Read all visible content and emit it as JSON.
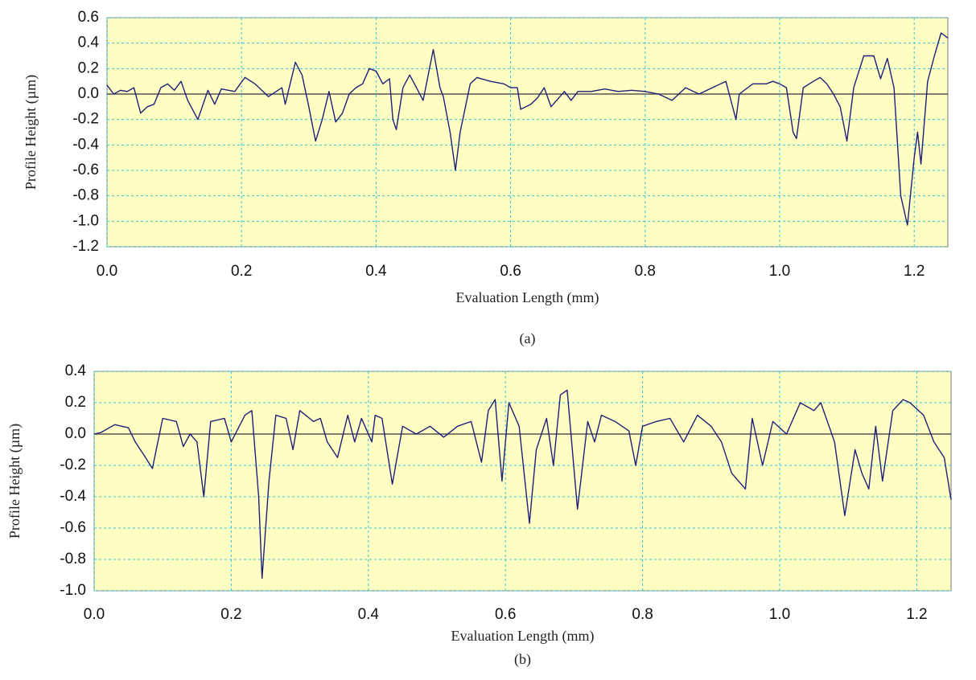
{
  "chart_data": [
    {
      "type": "line",
      "caption": "(a)",
      "xlabel": "Evaluation Length (mm)",
      "ylabel": "Profile Height (µm)",
      "color": "#1f1f7a",
      "grid": true,
      "xlim": [
        0,
        1.25
      ],
      "xticks": [
        {
          "value": 0,
          "label": "0.0"
        },
        0.2,
        0.4,
        0.6,
        0.8,
        {
          "value": 1,
          "label": "1.0"
        },
        1.2
      ],
      "ylim": [
        -1.2,
        0.6
      ],
      "yticks": [
        0.6,
        0.4,
        0.2,
        {
          "value": 0,
          "label": "0.0"
        },
        -0.2,
        -0.4,
        -0.6,
        -0.8,
        {
          "value": -1,
          "label": "-1.0"
        },
        -1.2
      ],
      "x": [
        0,
        0.01,
        0.02,
        0.03,
        0.04,
        0.05,
        0.06,
        0.07,
        0.08,
        0.09,
        0.1,
        0.11,
        0.12,
        0.135,
        0.15,
        0.16,
        0.17,
        0.19,
        0.205,
        0.22,
        0.24,
        0.26,
        0.265,
        0.28,
        0.29,
        0.3,
        0.31,
        0.32,
        0.33,
        0.34,
        0.35,
        0.36,
        0.37,
        0.38,
        0.39,
        0.4,
        0.41,
        0.42,
        0.425,
        0.43,
        0.44,
        0.45,
        0.46,
        0.47,
        0.485,
        0.495,
        0.5,
        0.51,
        0.518,
        0.525,
        0.54,
        0.55,
        0.57,
        0.59,
        0.6,
        0.61,
        0.615,
        0.63,
        0.64,
        0.65,
        0.66,
        0.68,
        0.69,
        0.7,
        0.72,
        0.74,
        0.76,
        0.78,
        0.8,
        0.82,
        0.84,
        0.86,
        0.88,
        0.9,
        0.92,
        0.935,
        0.94,
        0.96,
        0.98,
        0.99,
        1.0,
        1.01,
        1.02,
        1.025,
        1.035,
        1.05,
        1.06,
        1.07,
        1.08,
        1.09,
        1.1,
        1.11,
        1.125,
        1.14,
        1.15,
        1.16,
        1.17,
        1.18,
        1.19,
        1.2,
        1.205,
        1.21,
        1.22,
        1.23,
        1.24,
        1.25
      ],
      "values": [
        0.07,
        0.0,
        0.03,
        0.02,
        0.05,
        -0.15,
        -0.1,
        -0.08,
        0.05,
        0.08,
        0.03,
        0.1,
        -0.05,
        -0.2,
        0.03,
        -0.08,
        0.04,
        0.02,
        0.13,
        0.08,
        -0.02,
        0.05,
        -0.08,
        0.25,
        0.15,
        -0.1,
        -0.37,
        -0.2,
        0.02,
        -0.22,
        -0.15,
        0.0,
        0.05,
        0.08,
        0.2,
        0.18,
        0.08,
        0.12,
        -0.2,
        -0.28,
        0.05,
        0.15,
        0.05,
        -0.05,
        0.35,
        0.05,
        -0.02,
        -0.3,
        -0.6,
        -0.3,
        0.08,
        0.13,
        0.1,
        0.08,
        0.05,
        0.05,
        -0.12,
        -0.08,
        -0.03,
        0.05,
        -0.1,
        0.02,
        -0.05,
        0.02,
        0.02,
        0.04,
        0.02,
        0.03,
        0.02,
        0.0,
        -0.05,
        0.05,
        0.0,
        0.05,
        0.1,
        -0.2,
        0.0,
        0.08,
        0.08,
        0.1,
        0.08,
        0.05,
        -0.3,
        -0.35,
        0.05,
        0.1,
        0.13,
        0.08,
        0.0,
        -0.1,
        -0.37,
        0.05,
        0.3,
        0.3,
        0.12,
        0.28,
        0.05,
        -0.8,
        -1.03,
        -0.5,
        -0.3,
        -0.55,
        0.1,
        0.3,
        0.48,
        0.44
      ]
    },
    {
      "type": "line",
      "caption": "(b)",
      "xlabel": "Evaluation Length (mm)",
      "ylabel": "Profile Height (µm)",
      "color": "#1f1f7a",
      "grid": true,
      "xlim": [
        0,
        1.25
      ],
      "xticks": [
        {
          "value": 0,
          "label": "0.0"
        },
        0.2,
        0.4,
        0.6,
        0.8,
        {
          "value": 1,
          "label": "1.0"
        },
        1.2
      ],
      "ylim": [
        -1,
        0.4
      ],
      "yticks": [
        0.4,
        0.2,
        {
          "value": 0,
          "label": "0.0"
        },
        -0.2,
        -0.4,
        -0.6,
        -0.8,
        {
          "value": -1,
          "label": "-1.0"
        }
      ],
      "x": [
        0,
        0.01,
        0.03,
        0.05,
        0.06,
        0.075,
        0.085,
        0.1,
        0.12,
        0.13,
        0.14,
        0.15,
        0.16,
        0.17,
        0.19,
        0.2,
        0.22,
        0.23,
        0.24,
        0.245,
        0.255,
        0.265,
        0.28,
        0.29,
        0.3,
        0.32,
        0.33,
        0.34,
        0.355,
        0.37,
        0.38,
        0.39,
        0.405,
        0.41,
        0.42,
        0.435,
        0.45,
        0.47,
        0.49,
        0.51,
        0.53,
        0.55,
        0.565,
        0.575,
        0.585,
        0.595,
        0.605,
        0.62,
        0.635,
        0.645,
        0.66,
        0.67,
        0.68,
        0.69,
        0.705,
        0.72,
        0.73,
        0.74,
        0.76,
        0.78,
        0.79,
        0.8,
        0.82,
        0.84,
        0.86,
        0.88,
        0.9,
        0.915,
        0.93,
        0.95,
        0.96,
        0.975,
        0.99,
        1.01,
        1.03,
        1.05,
        1.06,
        1.08,
        1.095,
        1.11,
        1.12,
        1.13,
        1.14,
        1.15,
        1.165,
        1.18,
        1.19,
        1.21,
        1.225,
        1.24,
        1.25
      ],
      "values": [
        0.0,
        0.01,
        0.06,
        0.04,
        -0.05,
        -0.15,
        -0.22,
        0.1,
        0.08,
        -0.08,
        0.0,
        -0.05,
        -0.4,
        0.08,
        0.1,
        -0.05,
        0.12,
        0.15,
        -0.4,
        -0.92,
        -0.3,
        0.12,
        0.1,
        -0.1,
        0.15,
        0.08,
        0.1,
        -0.05,
        -0.15,
        0.12,
        -0.05,
        0.1,
        -0.05,
        0.12,
        0.1,
        -0.32,
        0.05,
        0.0,
        0.05,
        -0.02,
        0.05,
        0.08,
        -0.18,
        0.15,
        0.22,
        -0.3,
        0.2,
        0.05,
        -0.57,
        -0.1,
        0.1,
        -0.2,
        0.25,
        0.28,
        -0.48,
        0.08,
        -0.05,
        0.12,
        0.08,
        0.02,
        -0.2,
        0.05,
        0.08,
        0.1,
        -0.05,
        0.12,
        0.05,
        -0.05,
        -0.25,
        -0.35,
        0.1,
        -0.2,
        0.08,
        0.0,
        0.2,
        0.15,
        0.2,
        -0.05,
        -0.52,
        -0.1,
        -0.25,
        -0.35,
        0.05,
        -0.3,
        0.15,
        0.22,
        0.2,
        0.12,
        -0.05,
        -0.15,
        -0.42
      ]
    }
  ]
}
